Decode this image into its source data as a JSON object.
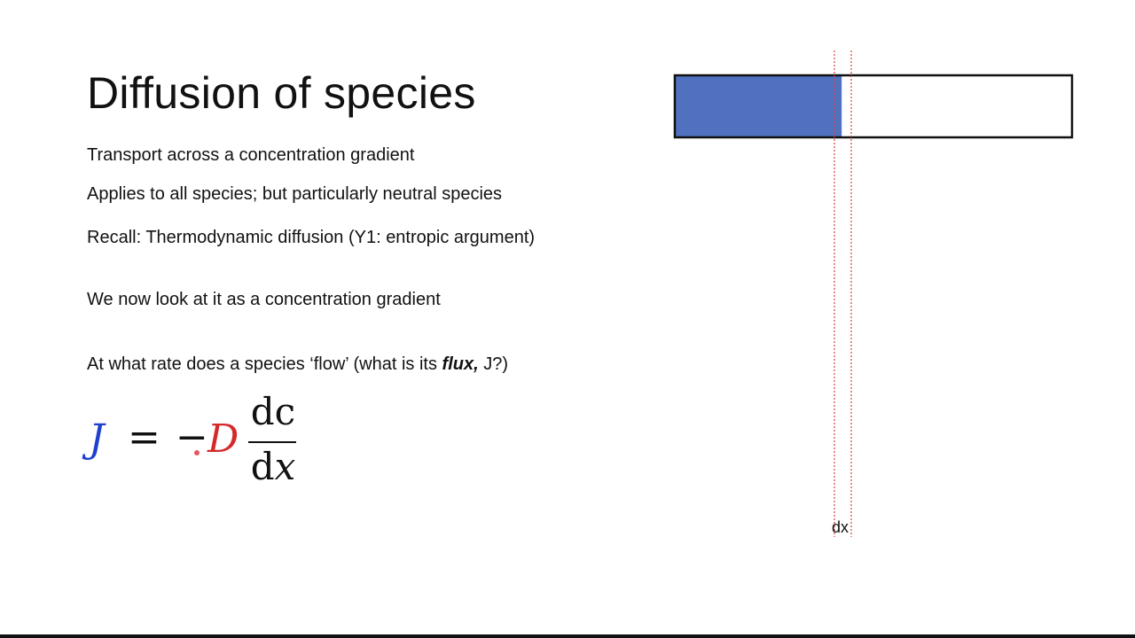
{
  "slide": {
    "title": "Diffusion of species",
    "bullets": [
      "Transport across a concentration gradient",
      "Applies to all species; but particularly neutral species",
      "Recall: Thermodynamic diffusion (Y1: entropic argument)",
      "We now look at it as a concentration gradient"
    ],
    "question": {
      "prefix": "At what rate does a species ‘flow’ (what is its ",
      "emphasis": "flux,",
      "suffix": " J?)"
    },
    "equation": {
      "lhs": "J",
      "equals": "=",
      "minus": "−",
      "coefficient": "D",
      "numerator": "dc",
      "denominator_d": "d",
      "denominator_var": "x"
    }
  },
  "diagram": {
    "dx_label": "dx",
    "fill_fraction": 0.42,
    "colors": {
      "fill": "#5070c0",
      "outline": "#111111",
      "dashed_lines": "#e23b3b"
    }
  },
  "colors": {
    "J": "#1f3fcf",
    "D": "#d42a2a",
    "text": "#111111"
  }
}
